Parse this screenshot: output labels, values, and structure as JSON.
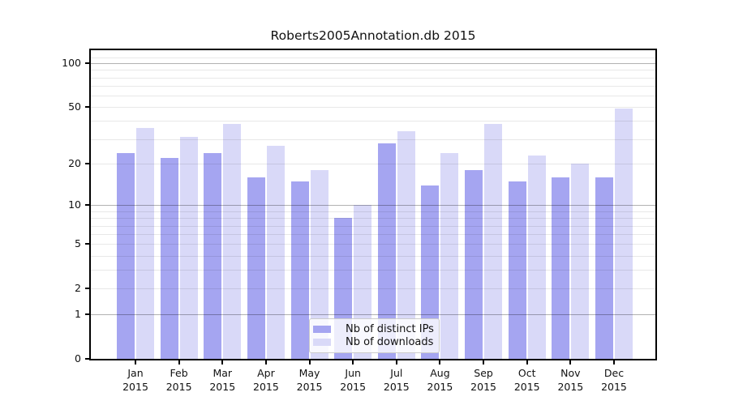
{
  "figure": {
    "background": "#ffffff",
    "title": "Roberts2005Annotation.db 2015"
  },
  "chart_data": {
    "type": "bar",
    "title": "Roberts2005Annotation.db 2015",
    "xlabel": "",
    "ylabel": "",
    "yscale": "log1p",
    "ylim": [
      0,
      123
    ],
    "grid": true,
    "legend_position": "inside-bottom-center",
    "categories": [
      "Jan 2015",
      "Feb 2015",
      "Mar 2015",
      "Apr 2015",
      "May 2015",
      "Jun 2015",
      "Jul 2015",
      "Aug 2015",
      "Sep 2015",
      "Oct 2015",
      "Nov 2015",
      "Dec 2015"
    ],
    "series": [
      {
        "name": "Nb of distinct IPs",
        "color": "#a5a5f1",
        "values": [
          24,
          22,
          24,
          16,
          15,
          8,
          28,
          14,
          18,
          15,
          16,
          16
        ]
      },
      {
        "name": "Nb of downloads",
        "color": "#d9d9f8",
        "values": [
          36,
          31,
          38,
          27,
          18,
          10,
          34,
          24,
          38,
          23,
          20,
          49
        ]
      }
    ],
    "yticks_labeled": [
      100,
      50,
      20,
      10,
      5,
      2,
      1,
      0
    ],
    "grid_major_values": [
      1,
      10,
      100
    ],
    "grid_minor_values": [
      2,
      3,
      4,
      5,
      6,
      7,
      8,
      9,
      20,
      30,
      40,
      50,
      60,
      70,
      80,
      90,
      110
    ]
  },
  "colors": {
    "distinct_ips_bar": "#a5a5f1",
    "downloads_bar": "#d9d9f8",
    "grid_major": "rgba(0,0,0,0.30)",
    "grid_minor": "rgba(0,0,0,0.09)",
    "axis": "#000000",
    "text": "#111111"
  }
}
